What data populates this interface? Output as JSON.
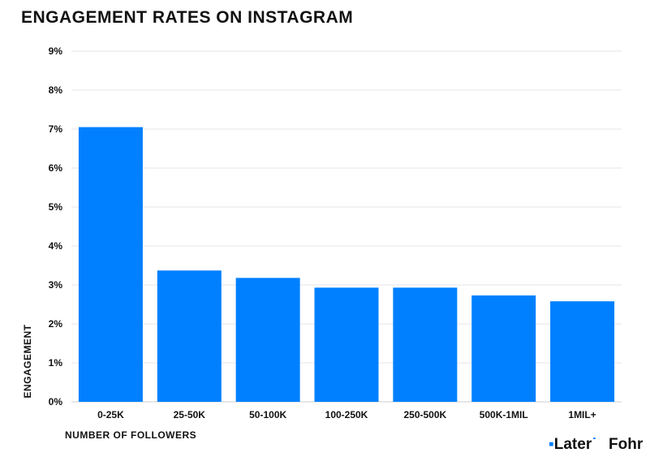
{
  "title": "ENGAGEMENT RATES ON INSTAGRAM",
  "colors": {
    "bar": "#0080ff",
    "grid": "#e6e6e6",
    "text": "#111111"
  },
  "logos": {
    "later": "Later",
    "fohr": "Fohr"
  },
  "chart_data": {
    "type": "bar",
    "title": "ENGAGEMENT RATES ON INSTAGRAM",
    "xlabel": "NUMBER OF FOLLOWERS",
    "ylabel": "ENGAGEMENT",
    "categories": [
      "0-25K",
      "25-50K",
      "50-100K",
      "100-250K",
      "250-500K",
      "500K-1MIL",
      "1MIL+"
    ],
    "values": [
      7.05,
      3.37,
      3.18,
      2.93,
      2.93,
      2.73,
      2.58
    ],
    "ylim": [
      0,
      9
    ],
    "yticks": [
      "0%",
      "1%",
      "2%",
      "3%",
      "4%",
      "5%",
      "6%",
      "7%",
      "8%",
      "9%"
    ],
    "grid": true,
    "legend": "none"
  }
}
